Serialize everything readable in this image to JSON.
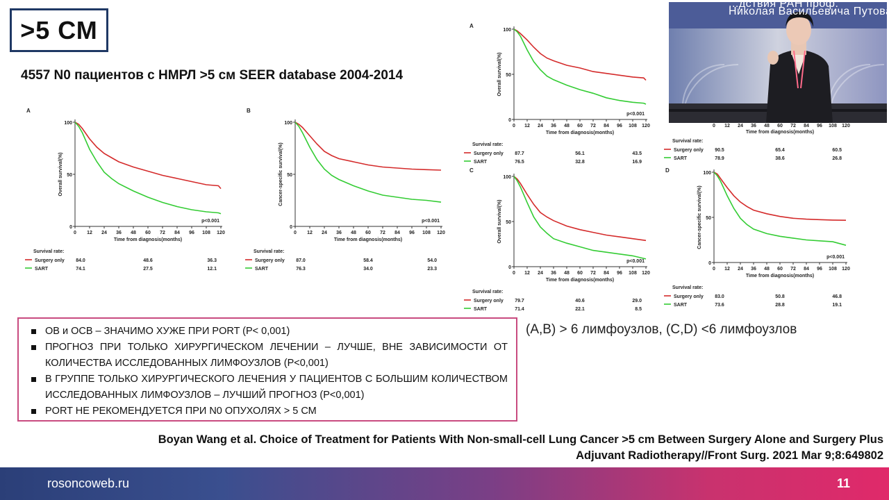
{
  "slide": {
    "title": ">5 СМ",
    "subtitle": "4557 N0 пациентов с НМРЛ >5 см SEER database 2004-2014",
    "bullets": [
      "ОВ и ОСВ – ЗНАЧИМО ХУЖЕ ПРИ PORT (P< 0,001)",
      "ПРОГНОЗ ПРИ ТОЛЬКО ХИРУРГИЧЕСКОМ ЛЕЧЕНИИ – ЛУЧШЕ, ВНЕ ЗАВИСИМОСТИ ОТ КОЛИЧЕСТВА ИССЛЕДОВАННЫХ ЛИМФОУЗЛОВ (P<0,001)",
      "В ГРУППЕ ТОЛЬКО ХИРУРГИЧЕСКОГО ЛЕЧЕНИЯ У ПАЦИЕНТОВ С БОЛЬШИМ КОЛИЧЕСТВОМ ИССЛЕДОВАННЫХ ЛИМФОУЗЛОВ – ЛУЧШИЙ ПРОГНОЗ (P<0,001)",
      "PORT НЕ РЕКОМЕНДУЕТСЯ ПРИ N0 ОПУХОЛЯХ > 5 СМ"
    ],
    "lymph_note": "(A,B) > 6 лимфоузлов, (C,D) <6 лимфоузлов",
    "citation_line1": "Boyan Wang et al. Choice of Treatment for Patients With Non-small-cell Lung Cancer >5 cm Between Surgery Alone and Surgery Plus",
    "citation_line2": "Adjuvant Radiotherapy//Front Surg. 2021 Mar 9;8:649802",
    "footer_site": "rosoncoweb.ru",
    "page_number": "11",
    "video_text_1": "...дствия РАН проф.",
    "video_text_2": "Николая Васильевича Путова"
  },
  "colors": {
    "surgery": "#d42a2a",
    "sart": "#33cc33",
    "frame_title": "#1f3864",
    "frame_bullets": "#c84a7f"
  },
  "chart_data": [
    {
      "panel": "A",
      "type": "line",
      "ylabel": "Overall survival(%)",
      "xlabel": "Time from diagnosis(months)",
      "xticks": [
        "0",
        "12",
        "24",
        "36",
        "48",
        "60",
        "72",
        "84",
        "96",
        "108",
        "120"
      ],
      "yticks": [
        "0",
        "50",
        "100"
      ],
      "xlim": [
        0,
        120
      ],
      "ylim": [
        0,
        100
      ],
      "pvalue": "p<0.001",
      "survival_label": "Survival rate:",
      "series": [
        {
          "name": "Surgery only",
          "color": "#d42a2a",
          "x": [
            0,
            3,
            6,
            12,
            18,
            24,
            30,
            36,
            48,
            60,
            72,
            84,
            96,
            108,
            118,
            120
          ],
          "y": [
            100,
            98,
            94,
            84,
            76,
            70,
            66,
            62,
            57,
            53,
            49,
            46,
            43,
            40,
            39,
            36.3
          ],
          "rates": [
            "84.0",
            "48.6",
            "36.3"
          ]
        },
        {
          "name": "SART",
          "color": "#33cc33",
          "x": [
            0,
            3,
            6,
            12,
            18,
            24,
            30,
            36,
            48,
            60,
            72,
            84,
            96,
            108,
            118,
            120
          ],
          "y": [
            100,
            96,
            90,
            74,
            62,
            52,
            46,
            41,
            34,
            28,
            23,
            19,
            16,
            14,
            13,
            12.1
          ],
          "rates": [
            "74.1",
            "27.5",
            "12.1"
          ]
        }
      ]
    },
    {
      "panel": "B",
      "type": "line",
      "ylabel": "Cancer-specific survival(%)",
      "xlabel": "Time from diagnosis(months)",
      "xticks": [
        "0",
        "12",
        "24",
        "36",
        "48",
        "60",
        "72",
        "84",
        "96",
        "108",
        "120"
      ],
      "yticks": [
        "0",
        "50",
        "100"
      ],
      "xlim": [
        0,
        120
      ],
      "ylim": [
        0,
        100
      ],
      "pvalue": "p<0.001",
      "survival_label": "Survival rate:",
      "series": [
        {
          "name": "Surgery only",
          "color": "#d42a2a",
          "x": [
            0,
            3,
            6,
            12,
            18,
            24,
            30,
            36,
            48,
            60,
            72,
            84,
            96,
            108,
            120
          ],
          "y": [
            100,
            98,
            95,
            87,
            79,
            72,
            68,
            65,
            62,
            59,
            57,
            56,
            55,
            54.5,
            54
          ],
          "rates": [
            "87.0",
            "58.4",
            "54.0"
          ]
        },
        {
          "name": "SART",
          "color": "#33cc33",
          "x": [
            0,
            3,
            6,
            12,
            18,
            24,
            30,
            36,
            48,
            60,
            72,
            84,
            96,
            108,
            120
          ],
          "y": [
            100,
            96,
            90,
            76,
            64,
            55,
            49,
            45,
            39,
            34,
            30,
            28,
            26,
            25,
            23.3
          ],
          "rates": [
            "76.3",
            "34.0",
            "23.3"
          ]
        }
      ]
    },
    {
      "panel": "A",
      "type": "line",
      "ylabel": "Overall survival(%)",
      "xlabel": "Time from diagnosis(months)",
      "xticks": [
        "0",
        "12",
        "24",
        "36",
        "48",
        "60",
        "72",
        "84",
        "96",
        "108",
        "120"
      ],
      "yticks": [
        "0",
        "50",
        "100"
      ],
      "xlim": [
        0,
        120
      ],
      "ylim": [
        0,
        100
      ],
      "pvalue": "p<0.001",
      "survival_label": "Survival rate:",
      "series": [
        {
          "name": "Surgery only",
          "color": "#d42a2a",
          "x": [
            0,
            3,
            6,
            12,
            18,
            24,
            30,
            36,
            48,
            60,
            72,
            84,
            96,
            108,
            118,
            120
          ],
          "y": [
            100,
            98,
            95,
            88,
            80,
            73,
            68,
            65,
            60,
            57,
            53,
            51,
            49,
            47,
            46,
            43.5
          ],
          "rates": [
            "87.7",
            "56.1",
            "43.5"
          ]
        },
        {
          "name": "SART",
          "color": "#33cc33",
          "x": [
            0,
            3,
            6,
            12,
            18,
            24,
            30,
            36,
            48,
            60,
            72,
            84,
            96,
            108,
            118,
            120
          ],
          "y": [
            100,
            97,
            92,
            77,
            64,
            55,
            48,
            44,
            38,
            33,
            29,
            24,
            21,
            19,
            18,
            16.9
          ],
          "rates": [
            "76.5",
            "32.8",
            "16.9"
          ]
        }
      ]
    },
    {
      "panel": "C",
      "type": "line",
      "ylabel": "Overall survival(%)",
      "xlabel": "Time from diagnosis(months)",
      "xticks": [
        "0",
        "12",
        "24",
        "36",
        "48",
        "60",
        "72",
        "84",
        "96",
        "108",
        "120"
      ],
      "yticks": [
        "0",
        "50",
        "100"
      ],
      "xlim": [
        0,
        120
      ],
      "ylim": [
        0,
        100
      ],
      "pvalue": "p<0.001",
      "survival_label": "Survival rate:",
      "series": [
        {
          "name": "Surgery only",
          "color": "#d42a2a",
          "x": [
            0,
            3,
            6,
            12,
            18,
            24,
            30,
            36,
            48,
            60,
            72,
            84,
            96,
            108,
            120
          ],
          "y": [
            100,
            97,
            92,
            80,
            69,
            60,
            55,
            51,
            45,
            41,
            38,
            35,
            33,
            31,
            29
          ],
          "rates": [
            "79.7",
            "40.6",
            "29.0"
          ]
        },
        {
          "name": "SART",
          "color": "#33cc33",
          "x": [
            0,
            3,
            6,
            12,
            18,
            24,
            30,
            36,
            48,
            60,
            72,
            84,
            96,
            108,
            120
          ],
          "y": [
            100,
            95,
            88,
            71,
            55,
            44,
            37,
            31,
            26,
            22,
            18,
            16,
            14,
            12,
            8.5
          ],
          "rates": [
            "71.4",
            "22.1",
            "8.5"
          ]
        }
      ]
    },
    {
      "panel": "D",
      "type": "line",
      "ylabel": "Cancer-specific survival(%)",
      "xlabel": "Time from diagnosis(months)",
      "xticks": [
        "0",
        "12",
        "24",
        "36",
        "48",
        "60",
        "72",
        "84",
        "96",
        "108",
        "120"
      ],
      "yticks": [
        "0",
        "50",
        "100"
      ],
      "xlim": [
        0,
        120
      ],
      "ylim": [
        0,
        100
      ],
      "pvalue": "p<0.001",
      "survival_label": "Survival rate:",
      "series": [
        {
          "name": "Surgery only",
          "color": "#d42a2a",
          "x": [
            0,
            3,
            6,
            12,
            18,
            24,
            30,
            36,
            48,
            60,
            72,
            84,
            96,
            108,
            120
          ],
          "y": [
            100,
            98,
            93,
            83,
            74,
            67,
            62,
            58,
            54,
            51,
            49,
            48,
            47.5,
            47,
            46.8
          ],
          "rates": [
            "83.0",
            "50.8",
            "46.8"
          ]
        },
        {
          "name": "SART",
          "color": "#33cc33",
          "x": [
            0,
            3,
            6,
            12,
            18,
            24,
            30,
            36,
            48,
            60,
            72,
            84,
            96,
            108,
            120
          ],
          "y": [
            100,
            96,
            90,
            74,
            60,
            49,
            42,
            37,
            32,
            29,
            27,
            25,
            24,
            23,
            19.1
          ],
          "rates": [
            "73.6",
            "28.8",
            "19.1"
          ]
        }
      ]
    }
  ]
}
